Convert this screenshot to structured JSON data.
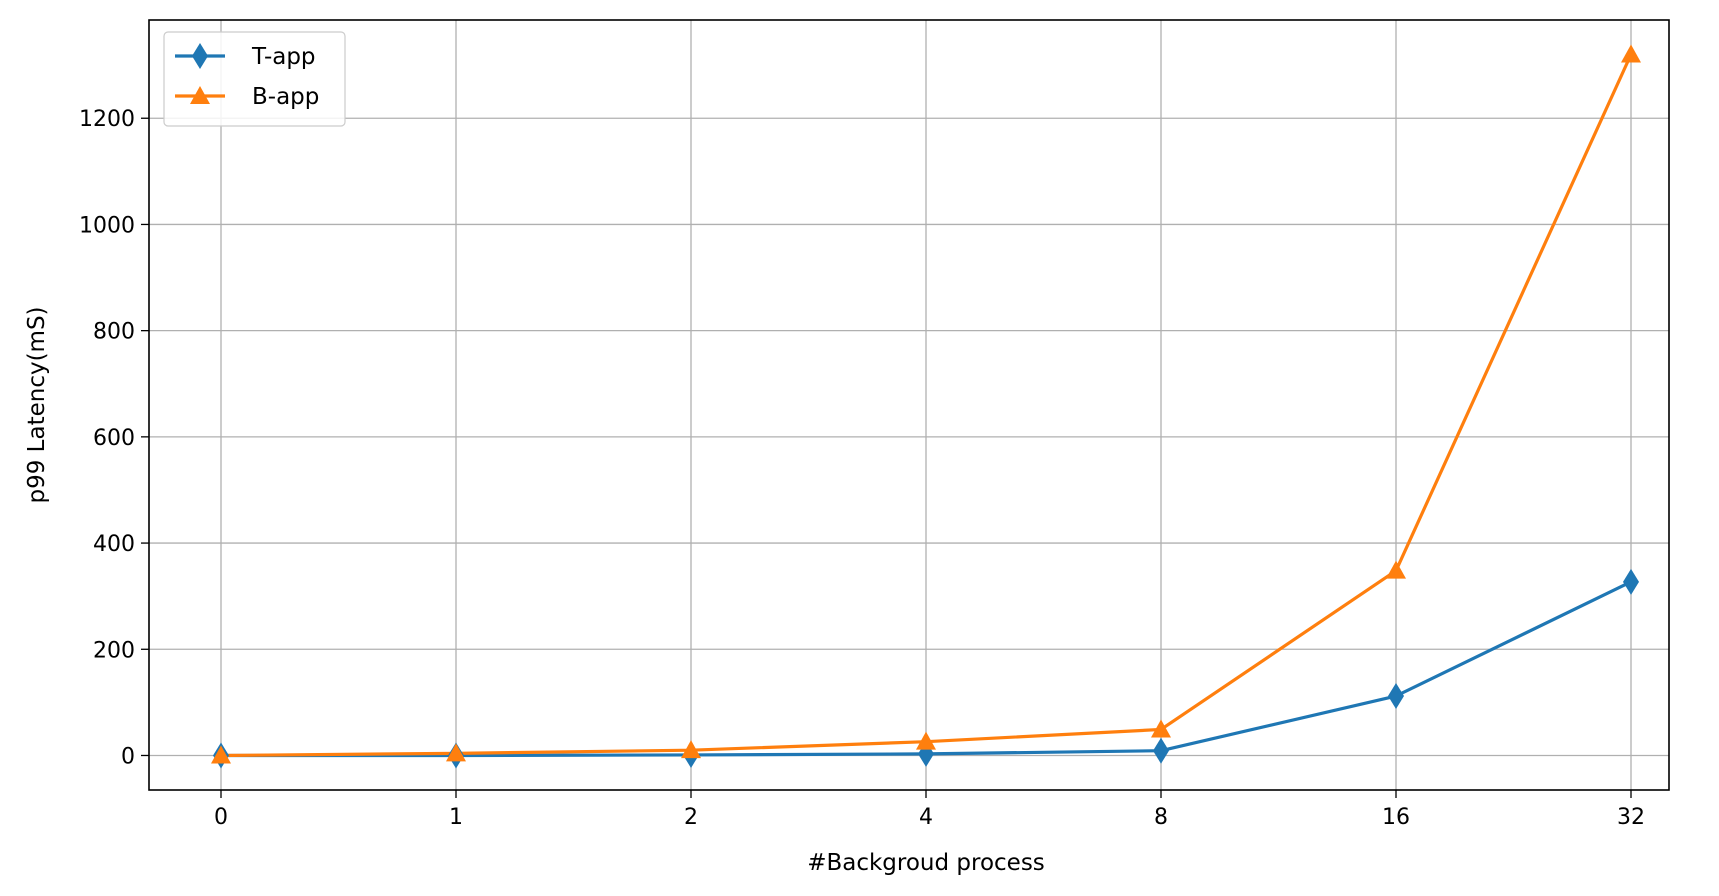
{
  "chart_data": {
    "type": "line",
    "title": "",
    "xlabel": "#Backgroud process",
    "ylabel": "p99 Latency(mS)",
    "categories": [
      "0",
      "1",
      "2",
      "4",
      "8",
      "16",
      "32"
    ],
    "yticks": [
      "0",
      "200",
      "400",
      "600",
      "800",
      "1000",
      "1200"
    ],
    "ylim": [
      -65,
      1385
    ],
    "grid": true,
    "legend_position": "top-left",
    "series": [
      {
        "name": "T-app",
        "color": "#1f77b4",
        "marker": "diamond",
        "values": [
          0,
          0,
          1,
          3,
          9,
          112,
          327
        ]
      },
      {
        "name": "B-app",
        "color": "#ff7f0e",
        "marker": "triangle",
        "values": [
          0,
          4,
          10,
          26,
          49,
          348,
          1320
        ]
      }
    ]
  }
}
